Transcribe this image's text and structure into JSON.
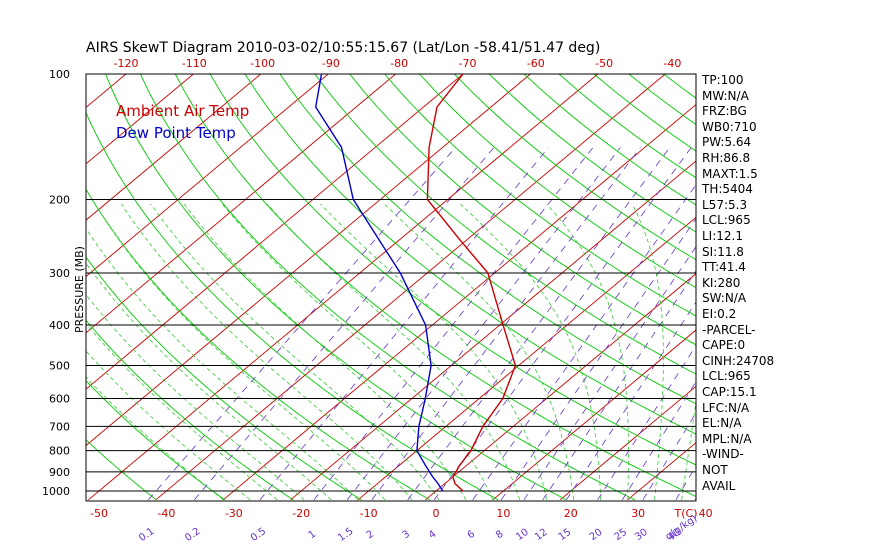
{
  "title": "AIRS SkewT Diagram 2010-03-02/10:55:15.67 (Lat/Lon -58.41/51.47 deg)",
  "chart_data": {
    "type": "line",
    "title": "AIRS SkewT Diagram 2010-03-02/10:55:15.67 (Lat/Lon -58.41/51.47 deg)",
    "ylabel": "PRESSURE (MB)",
    "y_scale": "log",
    "ylim": [
      1000,
      100
    ],
    "y_ticks": [
      100,
      200,
      300,
      400,
      500,
      600,
      700,
      800,
      900,
      1000
    ],
    "bottom_temp_ticks": [
      -50,
      -40,
      -30,
      -20,
      -10,
      0,
      10,
      20,
      30,
      40
    ],
    "bottom_temp_unit": "T(C)",
    "top_temp_ticks": [
      -120,
      -110,
      -100,
      -90,
      -80,
      -70,
      -60,
      -50,
      -40
    ],
    "mixing_ratio_ticks": [
      "0.1",
      "0.2",
      "0.5",
      "1",
      "1.5",
      "2",
      "3",
      "4",
      "6",
      "8",
      "10",
      "12",
      "15",
      "20",
      "25",
      "30",
      "40"
    ],
    "mixing_ratio_unit": "q(g/kg)",
    "legend": [
      "Ambient Air Temp",
      "Dew Point Temp"
    ],
    "legend_position": "top-left",
    "series": [
      {
        "name": "Ambient Air Temp",
        "color": "#cc0000",
        "pressure": [
          1000,
          960,
          925,
          870,
          800,
          700,
          600,
          500,
          400,
          300,
          250,
          200,
          150,
          120,
          100
        ],
        "temp": [
          4,
          1.5,
          0,
          -1,
          -2,
          -4.5,
          -6.5,
          -10.5,
          -19.5,
          -31,
          -41,
          -53,
          -62,
          -68,
          -70
        ]
      },
      {
        "name": "Dew Point Temp",
        "color": "#0000cc",
        "pressure": [
          1000,
          960,
          925,
          870,
          800,
          700,
          600,
          500,
          400,
          300,
          250,
          200,
          150,
          120,
          100
        ],
        "temp": [
          1,
          -1,
          -3,
          -6,
          -10,
          -14,
          -18,
          -23,
          -31,
          -44,
          -53,
          -64,
          -75,
          -86,
          -91
        ]
      }
    ],
    "grid": true,
    "background_lines": [
      "isobars",
      "isotherms",
      "dry adiabats",
      "moist adiabats",
      "mixing ratio"
    ]
  },
  "stats": [
    "TP:100",
    "MW:N/A",
    "FRZ:BG",
    "WB0:710",
    "PW:5.64",
    "RH:86.8",
    "MAXT:1.5",
    "TH:5404",
    "L57:5.3",
    "LCL:965",
    "LI:12.1",
    "SI:11.8",
    "TT:41.4",
    "KI:280",
    "SW:N/A",
    "EI:0.2",
    "-PARCEL-",
    "CAPE:0",
    "CINH:24708",
    "LCL:965",
    "CAP:15.1",
    "LFC:N/A",
    "EL:N/A",
    "MPL:N/A",
    "-WIND-",
    "NOT",
    "AVAIL"
  ],
  "colors": {
    "isotherm": "#cc0000",
    "dry_adiabat": "#00cc00",
    "moist_adiabat": "#33cc33",
    "mixing_ratio": "#6633cc",
    "isobar": "#000000"
  }
}
